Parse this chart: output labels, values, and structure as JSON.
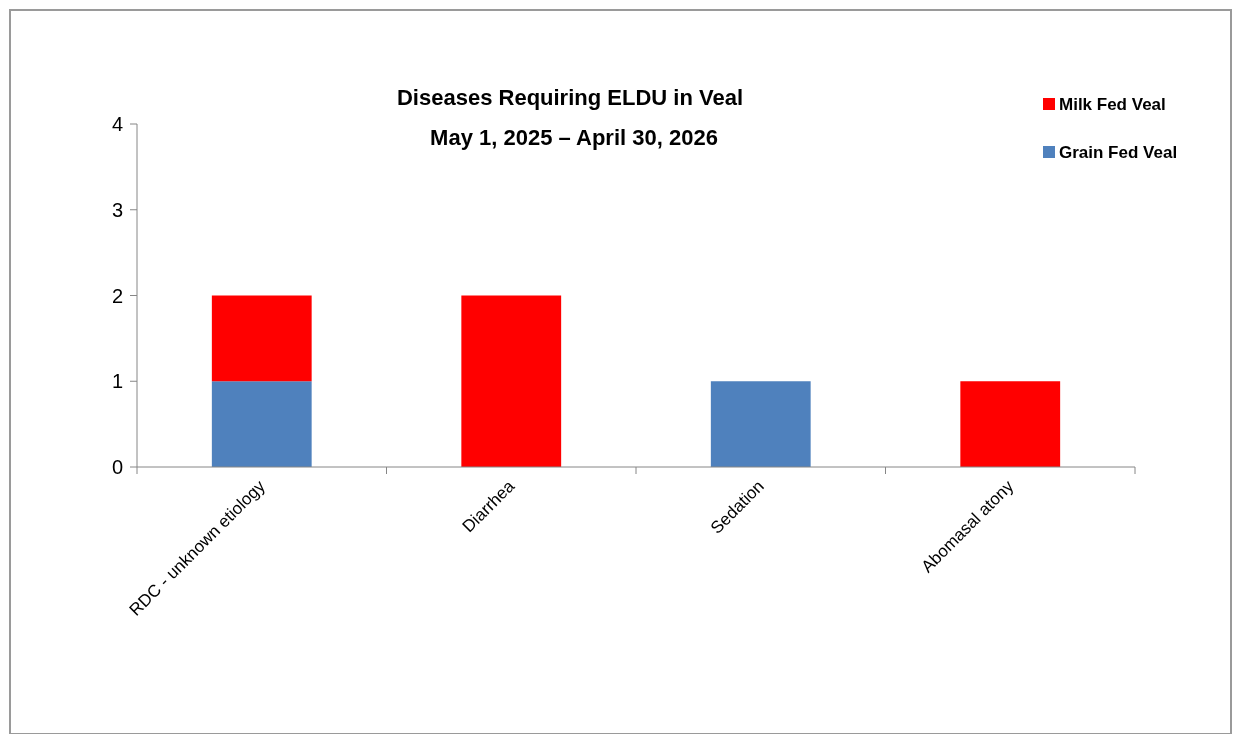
{
  "chart_data": {
    "type": "bar",
    "title": "Diseases Requiring ELDU in Veal",
    "subtitle": "May 1, 2025 – April 30, 2026",
    "categories": [
      "RDC - unknown etiology",
      "Diarrhea",
      "Sedation",
      "Abomasal atony"
    ],
    "stacked": true,
    "series": [
      {
        "name": "Grain Fed Veal",
        "color": "#4f81bd",
        "values": [
          1,
          0,
          1,
          0
        ]
      },
      {
        "name": "Milk Fed Veal",
        "color": "#ff0000",
        "values": [
          1,
          2,
          0,
          1
        ]
      }
    ],
    "ylim": [
      0,
      4
    ],
    "yticks": [
      0,
      1,
      2,
      3,
      4
    ],
    "grid": false,
    "legend": "top right"
  }
}
